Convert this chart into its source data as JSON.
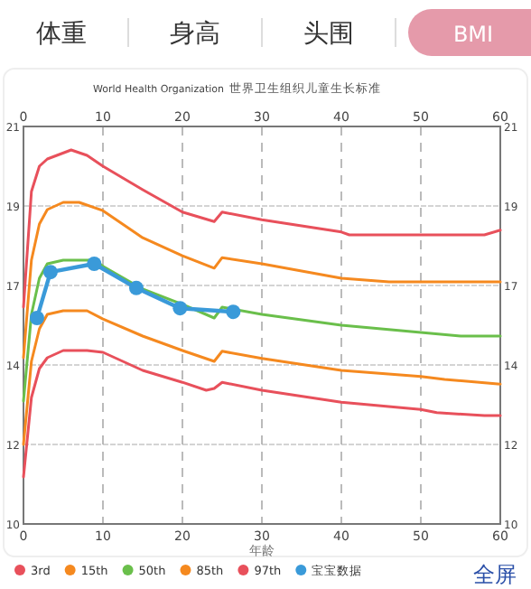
{
  "chart_data": {
    "type": "line",
    "title": "世界卫生组织儿童生长标准",
    "subtitle": "World Health Organization",
    "xlabel": "年龄",
    "annotations": [
      "体重",
      "身高",
      "头围",
      "BMI",
      "全屏"
    ],
    "xlim": [
      0,
      60
    ],
    "xticks": [
      0,
      10,
      20,
      30,
      40,
      50,
      60
    ],
    "x2lim": [
      0,
      60
    ],
    "x2ticks": [
      0,
      10,
      20,
      30,
      40,
      50,
      60
    ],
    "ylim": [
      10,
      21
    ],
    "yticks": [
      10,
      {
        "value": 12.2,
        "label": "12"
      },
      {
        "value": 14.4,
        "label": "14"
      },
      {
        "value": 16.6,
        "label": "17"
      },
      {
        "value": 18.8,
        "label": "19"
      },
      21
    ],
    "y2lim": [
      10,
      21
    ],
    "y2ticks": [
      10,
      {
        "value": 12.2,
        "label": "12"
      },
      {
        "value": 14.4,
        "label": "14"
      },
      {
        "value": 16.6,
        "label": "17"
      },
      {
        "value": 18.8,
        "label": "19"
      },
      21
    ],
    "grid": true,
    "legend": "bottom",
    "line_style": "solid",
    "series": [
      {
        "name": "3rd",
        "color": "#e8505b",
        "marker": "none",
        "x": [
          0,
          1,
          2,
          3,
          5,
          8,
          10,
          15,
          20,
          23,
          24,
          25,
          30,
          40,
          50,
          52,
          58,
          60
        ],
        "values": [
          11.3,
          13.5,
          14.3,
          14.6,
          14.8,
          14.8,
          14.75,
          14.25,
          13.92,
          13.7,
          13.75,
          13.92,
          13.7,
          13.37,
          13.17,
          13.08,
          13.0,
          13.0
        ]
      },
      {
        "name": "15th",
        "color": "#f5891f",
        "marker": "none",
        "x": [
          0,
          1,
          2,
          3,
          5,
          8,
          10,
          15,
          20,
          24,
          25,
          30,
          40,
          50,
          53,
          60
        ],
        "values": [
          12.2,
          14.5,
          15.4,
          15.8,
          15.9,
          15.9,
          15.67,
          15.2,
          14.8,
          14.5,
          14.78,
          14.58,
          14.25,
          14.08,
          14.0,
          13.87
        ]
      },
      {
        "name": "50th",
        "color": "#6abf4b",
        "marker": "none",
        "x": [
          0,
          1,
          2,
          3,
          5,
          9,
          10,
          15,
          20,
          24,
          25,
          30,
          40,
          50,
          55,
          60
        ],
        "values": [
          13.4,
          15.8,
          16.8,
          17.2,
          17.3,
          17.3,
          17.13,
          16.5,
          16.08,
          15.7,
          16.0,
          15.8,
          15.5,
          15.3,
          15.2,
          15.2
        ]
      },
      {
        "name": "85th",
        "color": "#f5891f",
        "marker": "none",
        "x": [
          0,
          1,
          2,
          3,
          5,
          7,
          10,
          15,
          20,
          24,
          25,
          30,
          40,
          46,
          60
        ],
        "values": [
          14.6,
          17.3,
          18.3,
          18.7,
          18.9,
          18.9,
          18.67,
          17.92,
          17.42,
          17.08,
          17.37,
          17.2,
          16.8,
          16.7,
          16.7
        ]
      },
      {
        "name": "97th",
        "color": "#e8505b",
        "marker": "none",
        "x": [
          0,
          1,
          2,
          3,
          6,
          8,
          10,
          15,
          20,
          24,
          25,
          30,
          40,
          41,
          58,
          60
        ],
        "values": [
          16.0,
          19.2,
          19.9,
          20.1,
          20.35,
          20.2,
          19.9,
          19.25,
          18.63,
          18.37,
          18.63,
          18.42,
          18.08,
          18.0,
          18.0,
          18.13
        ]
      },
      {
        "name": "宝宝数据",
        "color": "#3a9ad9",
        "marker": "circle",
        "x": [
          1.7,
          3.4,
          8.9,
          14.2,
          19.7,
          26.4
        ],
        "values": [
          15.7,
          16.97,
          17.2,
          16.53,
          15.97,
          15.87
        ]
      }
    ]
  }
}
